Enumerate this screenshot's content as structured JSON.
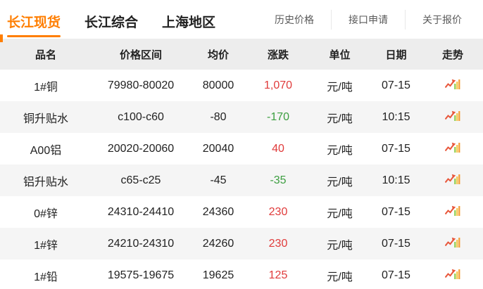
{
  "nav": {
    "tabs": [
      {
        "label": "长江现货",
        "active": true
      },
      {
        "label": "长江综合",
        "active": false
      },
      {
        "label": "上海地区",
        "active": false
      }
    ],
    "links": [
      "历史价格",
      "接口申请",
      "关于报价"
    ]
  },
  "table": {
    "headers": [
      "品名",
      "价格区间",
      "均价",
      "涨跌",
      "单位",
      "日期",
      "走势"
    ],
    "rows": [
      {
        "name": "1#铜",
        "range": "79980-80020",
        "avg": "80000",
        "change": "1,070",
        "direction": "up",
        "unit": "元/吨",
        "date": "07-15"
      },
      {
        "name": "铜升贴水",
        "range": "c100-c60",
        "avg": "-80",
        "change": "-170",
        "direction": "down",
        "unit": "元/吨",
        "date": "10:15"
      },
      {
        "name": "A00铝",
        "range": "20020-20060",
        "avg": "20040",
        "change": "40",
        "direction": "up",
        "unit": "元/吨",
        "date": "07-15"
      },
      {
        "name": "铝升贴水",
        "range": "c65-c25",
        "avg": "-45",
        "change": "-35",
        "direction": "down",
        "unit": "元/吨",
        "date": "10:15"
      },
      {
        "name": "0#锌",
        "range": "24310-24410",
        "avg": "24360",
        "change": "230",
        "direction": "up",
        "unit": "元/吨",
        "date": "07-15"
      },
      {
        "name": "1#锌",
        "range": "24210-24310",
        "avg": "24260",
        "change": "230",
        "direction": "up",
        "unit": "元/吨",
        "date": "07-15"
      },
      {
        "name": "1#铅",
        "range": "19575-19675",
        "avg": "19625",
        "change": "125",
        "direction": "up",
        "unit": "元/吨",
        "date": "07-15"
      }
    ],
    "trend_icon": "trend-chart-icon"
  },
  "colors": {
    "accent": "#ff7e00",
    "up": "#e03b3b",
    "down": "#3c9e40"
  }
}
